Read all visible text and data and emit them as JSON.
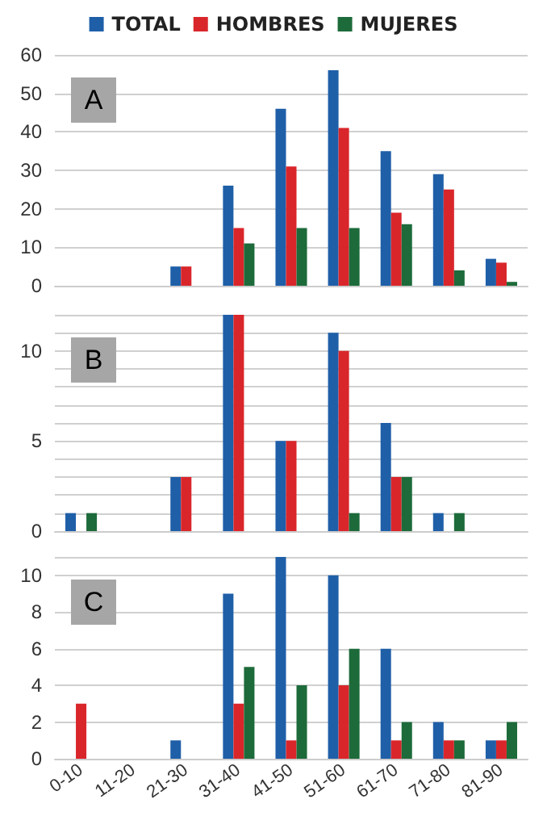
{
  "chart_data": [
    {
      "type": "bar",
      "categories": [
        null,
        null,
        null,
        null,
        null,
        null,
        null,
        null,
        null
      ],
      "series": [
        {
          "name": "TOTAL",
          "color": "#1f5fa8",
          "values": [
            0,
            0,
            5,
            26,
            46,
            56,
            35,
            29,
            7
          ]
        },
        {
          "name": "HOMBRES",
          "color": "#d9262b",
          "values": [
            0,
            0,
            5,
            15,
            31,
            41,
            19,
            25,
            6
          ]
        },
        {
          "name": "MUJERES",
          "color": "#1d6b3a",
          "values": [
            0,
            0,
            0,
            11,
            15,
            15,
            16,
            4,
            1
          ]
        }
      ],
      "ylim": [
        0,
        60
      ],
      "yticks": [
        0,
        10,
        20,
        30,
        40,
        50,
        60
      ],
      "grid": "y",
      "legend": "top",
      "tick_labels": "y",
      "annotations": [
        "A"
      ]
    },
    {
      "type": "bar",
      "categories": [
        null,
        null,
        null,
        null,
        null,
        null,
        null,
        null,
        null
      ],
      "series": [
        {
          "color": "#1f5fa8",
          "values": [
            1,
            0,
            3,
            12,
            5,
            11,
            6,
            1,
            0
          ]
        },
        {
          "color": "#d9262b",
          "values": [
            0,
            0,
            3,
            12,
            5,
            10,
            3,
            0,
            0
          ]
        },
        {
          "color": "#1d6b3a",
          "values": [
            1,
            0,
            0,
            0,
            0,
            1,
            3,
            1,
            0
          ]
        }
      ],
      "ylim": [
        0,
        12
      ],
      "yticks": [
        0,
        {
          "value": 1,
          "label": null
        },
        {
          "value": 2,
          "label": null
        },
        {
          "value": 3,
          "label": null
        },
        {
          "value": 4,
          "label": null
        },
        5,
        {
          "value": 6,
          "label": null
        },
        {
          "value": 7,
          "label": null
        },
        {
          "value": 8,
          "label": null
        },
        {
          "value": 9,
          "label": null
        },
        10,
        {
          "value": 11,
          "label": null
        },
        {
          "value": 12,
          "label": null
        }
      ],
      "grid": "y",
      "tick_labels": "y",
      "annotations": [
        "B"
      ]
    },
    {
      "type": "bar",
      "categories": [
        "0-10",
        "11-20",
        "21-30",
        "31-40",
        "41-50",
        "51-60",
        "61-70",
        "71-80",
        "81-90"
      ],
      "series": [
        {
          "color": "#1f5fa8",
          "values": [
            0,
            0,
            1,
            9,
            11,
            10,
            6,
            2,
            1
          ]
        },
        {
          "color": "#d9262b",
          "values": [
            3,
            0,
            0,
            3,
            1,
            4,
            1,
            1,
            1
          ]
        },
        {
          "color": "#1d6b3a",
          "values": [
            0,
            0,
            0,
            5,
            4,
            6,
            2,
            1,
            2
          ]
        }
      ],
      "ylim": [
        0,
        11
      ],
      "yticks": [
        0,
        2,
        4,
        6,
        8,
        10,
        {
          "value": 11,
          "label": null
        }
      ],
      "grid": "y",
      "annotations": [
        "C"
      ]
    }
  ]
}
